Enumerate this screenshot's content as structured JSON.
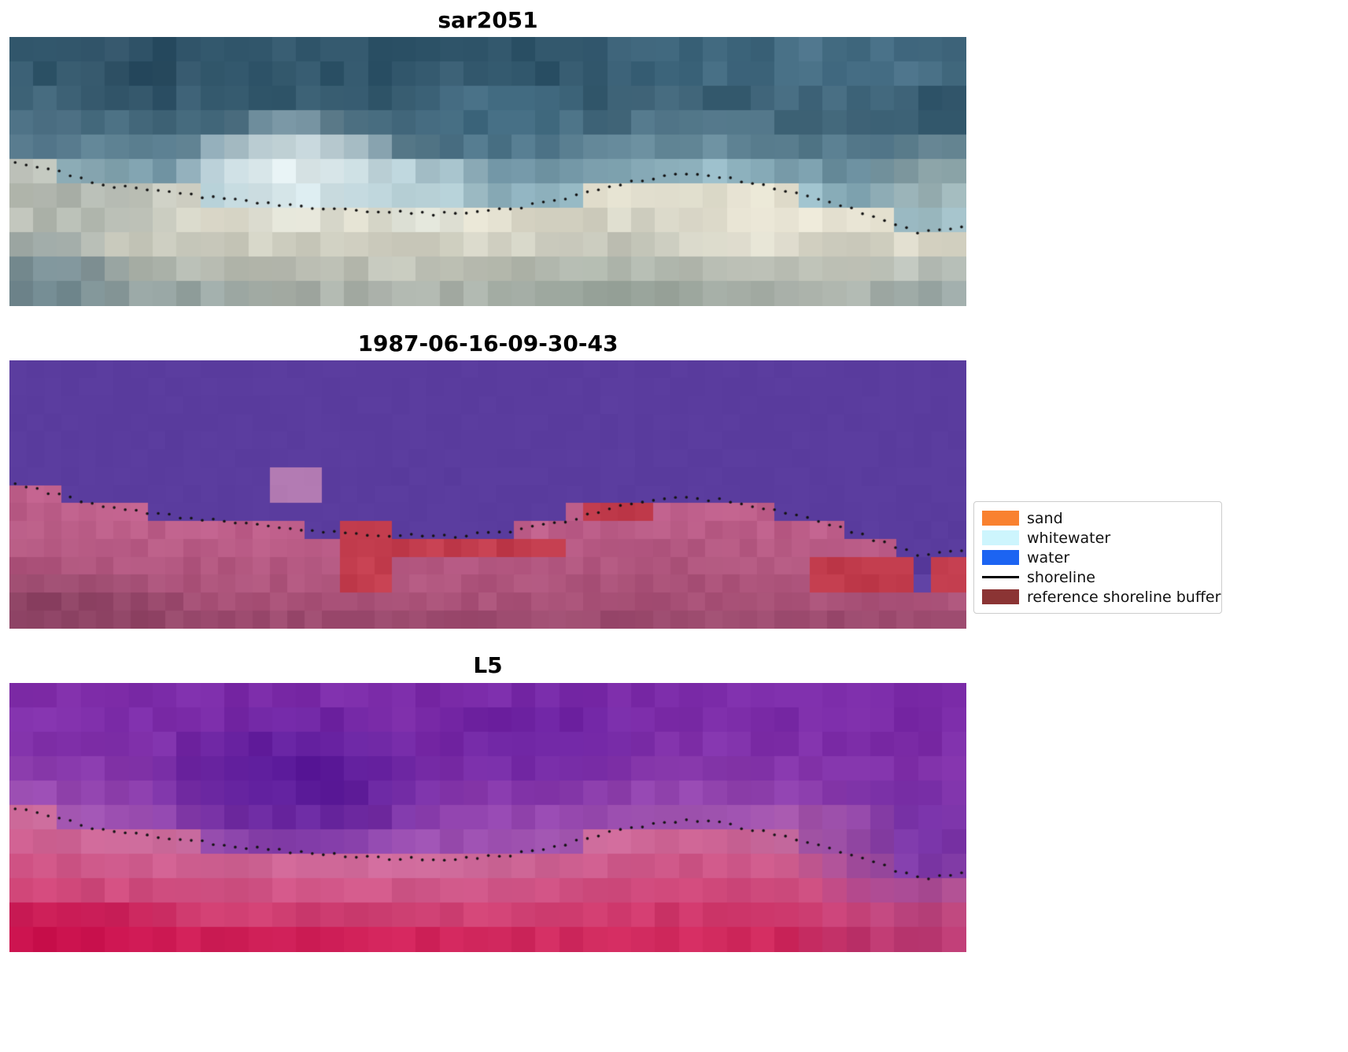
{
  "figure": {
    "background": "#ffffff"
  },
  "chart_data": {
    "type": "heatmap",
    "description": "Three coregistered coastal image transect panels (SAR RGB composite, classification map, Landsat 5) with a detected shoreline overlaid as small black dots; legend maps classes to colors.",
    "shoreline": {
      "points": [
        [
          0.0,
          0.46
        ],
        [
          0.05,
          0.5
        ],
        [
          0.1,
          0.55
        ],
        [
          0.16,
          0.575
        ],
        [
          0.22,
          0.6
        ],
        [
          0.3,
          0.63
        ],
        [
          0.38,
          0.648
        ],
        [
          0.45,
          0.658
        ],
        [
          0.52,
          0.64
        ],
        [
          0.58,
          0.6
        ],
        [
          0.64,
          0.545
        ],
        [
          0.7,
          0.512
        ],
        [
          0.74,
          0.52
        ],
        [
          0.8,
          0.56
        ],
        [
          0.86,
          0.615
        ],
        [
          0.91,
          0.675
        ],
        [
          0.95,
          0.725
        ],
        [
          0.98,
          0.72
        ],
        [
          1.0,
          0.705
        ]
      ],
      "dot_color": "#141414",
      "dot_radius": 1.8,
      "dot_step": 0.0115
    },
    "panels": [
      {
        "title": "sar2051",
        "grid": {
          "cols": 40,
          "rows": 11
        },
        "seed": 11,
        "above": {
          "top": "#31566b",
          "near": "#9fc2cd",
          "curve": 2.8,
          "noise": 0.045
        },
        "below": {
          "near": "#e3dfce",
          "bottom": "#9fa8a2",
          "curve": 1.3,
          "noise": 0.05
        },
        "patches": [
          {
            "shape": "ellipse",
            "x": 0.13,
            "y": 0.12,
            "rx": 0.1,
            "ry": 0.18,
            "color": "#2b4a5e",
            "alpha": 0.5
          },
          {
            "shape": "ellipse",
            "x": 0.02,
            "y": 0.38,
            "rx": 0.08,
            "ry": 0.15,
            "color": "#41637a",
            "alpha": 0.6
          },
          {
            "shape": "ellipse",
            "x": 0.3,
            "y": 0.5,
            "rx": 0.13,
            "ry": 0.22,
            "color": "#eef7f7",
            "alpha": 0.9
          },
          {
            "shape": "ellipse",
            "x": 0.43,
            "y": 0.56,
            "rx": 0.09,
            "ry": 0.16,
            "color": "#d9edf0",
            "alpha": 0.7
          },
          {
            "shape": "ellipse",
            "x": 0.52,
            "y": 0.3,
            "rx": 0.1,
            "ry": 0.18,
            "color": "#4d7b93",
            "alpha": 0.5
          },
          {
            "shape": "ellipse",
            "x": 0.7,
            "y": 0.08,
            "rx": 0.1,
            "ry": 0.12,
            "color": "#47728a",
            "alpha": 0.5
          },
          {
            "shape": "ellipse",
            "x": 0.87,
            "y": 0.1,
            "rx": 0.17,
            "ry": 0.16,
            "color": "#5d88a0",
            "alpha": 0.55
          },
          {
            "shape": "ellipse",
            "x": 0.08,
            "y": 0.62,
            "rx": 0.14,
            "ry": 0.14,
            "color": "#8e9b99",
            "alpha": 0.6
          },
          {
            "shape": "ellipse",
            "x": 0.04,
            "y": 0.92,
            "rx": 0.1,
            "ry": 0.2,
            "color": "#64808c",
            "alpha": 0.8
          },
          {
            "shape": "ellipse",
            "x": 0.16,
            "y": 1.0,
            "rx": 0.12,
            "ry": 0.16,
            "color": "#84989a",
            "alpha": 0.6
          },
          {
            "shape": "ellipse",
            "x": 0.62,
            "y": 0.95,
            "rx": 0.16,
            "ry": 0.14,
            "color": "#98a79c",
            "alpha": 0.5
          },
          {
            "shape": "ellipse",
            "x": 0.78,
            "y": 0.72,
            "rx": 0.12,
            "ry": 0.14,
            "color": "#f0ead9",
            "alpha": 0.6
          },
          {
            "shape": "ellipse",
            "x": 0.97,
            "y": 0.55,
            "rx": 0.08,
            "ry": 0.18,
            "color": "#cfd8cd",
            "alpha": 0.5
          },
          {
            "shape": "ellipse",
            "x": 0.98,
            "y": 0.95,
            "rx": 0.1,
            "ry": 0.15,
            "color": "#8fa3a6",
            "alpha": 0.5
          }
        ]
      },
      {
        "title": "1987-06-16-09-30-43",
        "grid": {
          "cols": 55,
          "rows": 15
        },
        "seed": 17,
        "above": {
          "top": "#5a3c9e",
          "near": "#5a3c9e",
          "curve": 1,
          "noise": 0.006
        },
        "below": {
          "near": "#c0608c",
          "bottom": "#a04c70",
          "curve": 1,
          "noise": 0.03
        },
        "patches": [
          {
            "shape": "rect",
            "x0": 0.265,
            "y0": 0.43,
            "x1": 0.335,
            "y1": 0.505,
            "color": "#b27ab2",
            "alpha": 1
          },
          {
            "shape": "rect",
            "x0": 0.575,
            "y0": 0.52,
            "x1": 0.72,
            "y1": 0.6,
            "color": "#bd5e8a",
            "alpha": 1
          },
          {
            "shape": "rect",
            "x0": 0.594,
            "y0": 0.545,
            "x1": 0.675,
            "y1": 0.625,
            "color": "#c23c4d",
            "alpha": 1
          },
          {
            "shape": "rect",
            "x0": 0.345,
            "y0": 0.575,
            "x1": 0.392,
            "y1": 0.84,
            "color": "#c23c4d",
            "alpha": 1
          },
          {
            "shape": "rect",
            "x0": 0.392,
            "y0": 0.645,
            "x1": 0.578,
            "y1": 0.73,
            "color": "#c23c4d",
            "alpha": 1
          },
          {
            "shape": "rect",
            "x0": 0.845,
            "y0": 0.72,
            "x1": 0.958,
            "y1": 0.845,
            "color": "#c23c4d",
            "alpha": 1
          },
          {
            "shape": "rect",
            "x0": 0.948,
            "y0": 0.7,
            "x1": 0.972,
            "y1": 0.845,
            "color": "#5a3c9e",
            "alpha": 1
          },
          {
            "shape": "rect",
            "x0": 0.968,
            "y0": 0.745,
            "x1": 1.0,
            "y1": 0.885,
            "color": "#c23c4d",
            "alpha": 1
          },
          {
            "shape": "ellipse",
            "x": 0.05,
            "y": 1.0,
            "rx": 0.18,
            "ry": 0.22,
            "color": "#7c3a58",
            "alpha": 0.75
          },
          {
            "shape": "rect",
            "x0": 0.0,
            "y0": 0.94,
            "x1": 1.0,
            "y1": 1.0,
            "color": "#97496c",
            "alpha": 0.5
          }
        ]
      },
      {
        "title": "L5",
        "grid": {
          "cols": 40,
          "rows": 11
        },
        "seed": 23,
        "above": {
          "top": "#7b2ba8",
          "near": "#a75bb4",
          "curve": 2.6,
          "noise": 0.03
        },
        "below": {
          "near": "#ce6f9f",
          "bottom": "#d02055",
          "curve": 1.1,
          "noise": 0.03
        },
        "patches": [
          {
            "shape": "ellipse",
            "x": 0.05,
            "y": 0.05,
            "rx": 0.1,
            "ry": 0.12,
            "color": "#8a35ae",
            "alpha": 0.5
          },
          {
            "shape": "ellipse",
            "x": 0.3,
            "y": 0.38,
            "rx": 0.17,
            "ry": 0.3,
            "color": "#4a1094",
            "alpha": 0.7
          },
          {
            "shape": "ellipse",
            "x": 0.55,
            "y": 0.22,
            "rx": 0.13,
            "ry": 0.22,
            "color": "#5d1a9e",
            "alpha": 0.45
          },
          {
            "shape": "ellipse",
            "x": 0.94,
            "y": 0.6,
            "rx": 0.12,
            "ry": 0.28,
            "color": "#5c1f9e",
            "alpha": 0.55
          },
          {
            "shape": "ellipse",
            "x": 0.85,
            "y": 0.55,
            "rx": 0.1,
            "ry": 0.12,
            "color": "#b4619f",
            "alpha": 0.5
          },
          {
            "shape": "ellipse",
            "x": 0.05,
            "y": 0.97,
            "rx": 0.17,
            "ry": 0.2,
            "color": "#c40745",
            "alpha": 0.85
          },
          {
            "shape": "ellipse",
            "x": 0.32,
            "y": 1.0,
            "rx": 0.25,
            "ry": 0.14,
            "color": "#cf1350",
            "alpha": 0.55
          },
          {
            "shape": "ellipse",
            "x": 0.96,
            "y": 0.96,
            "rx": 0.15,
            "ry": 0.22,
            "color": "#a8427f",
            "alpha": 0.55
          }
        ]
      }
    ],
    "legend": {
      "items": [
        {
          "label": "sand",
          "swatch": "rect",
          "color": "#f9812f"
        },
        {
          "label": "whitewater",
          "swatch": "rect",
          "color": "#cdf5fd"
        },
        {
          "label": "water",
          "swatch": "rect",
          "color": "#1c64f2"
        },
        {
          "label": "shoreline",
          "swatch": "line",
          "color": "#000000"
        },
        {
          "label": "reference shoreline buffer",
          "swatch": "rect",
          "color": "#8b3434"
        }
      ]
    }
  }
}
